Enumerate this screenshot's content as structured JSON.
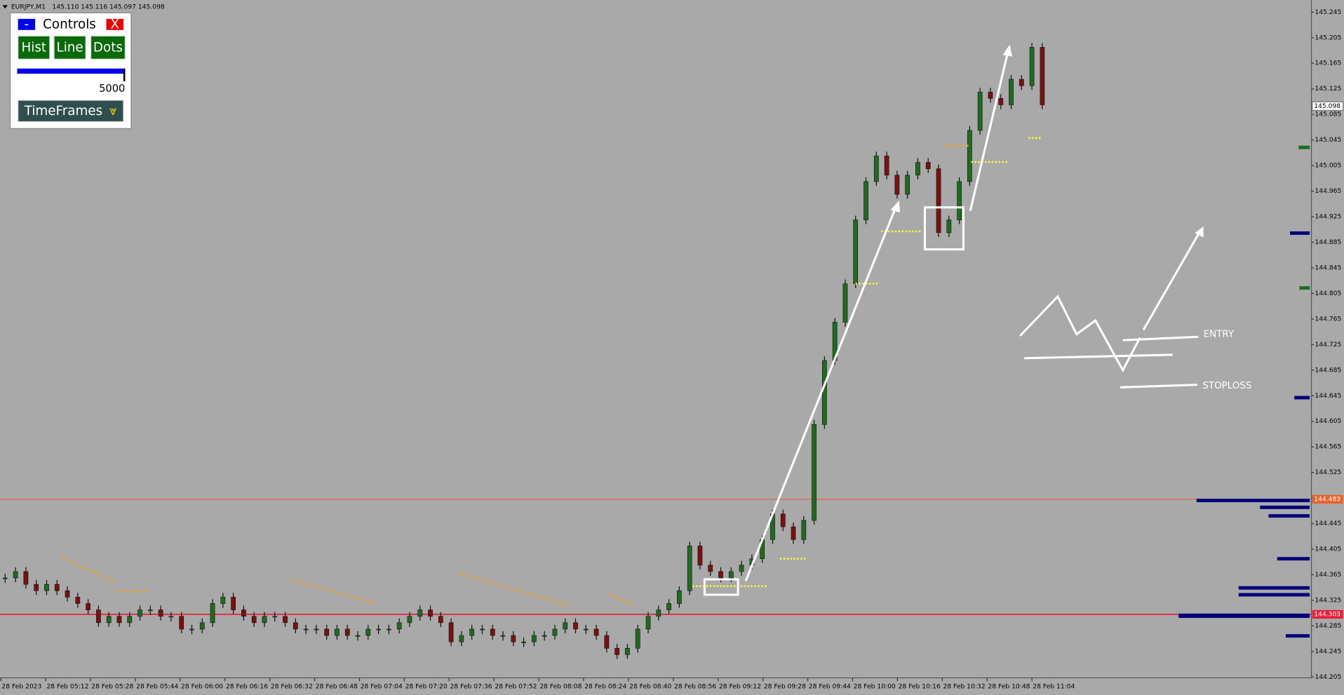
{
  "header": {
    "symbol": "EURJPY,M1",
    "ohlc": "145.110 145.116 145.097 145.098"
  },
  "controls": {
    "minimize": "-",
    "title": "Controls",
    "close": "X",
    "buttons": [
      "Hist",
      "Line",
      "Dots"
    ],
    "slider_value": "5000",
    "timeframes": "TimeFrames"
  },
  "chart_data": {
    "type": "candlestick",
    "values": [
      144.36,
      144.37,
      144.35,
      144.34,
      144.35,
      144.34,
      144.33,
      144.32,
      144.31,
      144.29,
      144.3,
      144.29,
      144.3,
      144.31,
      144.31,
      144.3,
      144.3,
      144.28,
      144.28,
      144.29,
      144.32,
      144.33,
      144.31,
      144.3,
      144.29,
      144.3,
      144.3,
      144.29,
      144.28,
      144.28,
      144.28,
      144.27,
      144.28,
      144.27,
      144.27,
      144.28,
      144.28,
      144.28,
      144.29,
      144.3,
      144.31,
      144.3,
      144.29,
      144.26,
      144.27,
      144.28,
      144.28,
      144.27,
      144.27,
      144.26,
      144.26,
      144.27,
      144.27,
      144.28,
      144.29,
      144.28,
      144.28,
      144.27,
      144.25,
      144.24,
      144.25,
      144.28,
      144.3,
      144.31,
      144.32,
      144.34,
      144.41,
      144.38,
      144.37,
      144.36,
      144.37,
      144.38,
      144.39,
      144.42,
      144.46,
      144.44,
      144.42,
      144.45,
      144.6,
      144.7,
      144.76,
      144.82,
      144.92,
      144.98,
      145.02,
      144.99,
      144.96,
      144.99,
      145.01,
      145.0,
      144.9,
      144.92,
      144.98,
      145.06,
      145.12,
      145.11,
      145.1,
      145.14,
      145.13,
      145.19,
      145.1
    ],
    "ylim": [
      144.205,
      145.264
    ],
    "yticks": [
      145.245,
      145.205,
      145.165,
      145.125,
      145.085,
      145.045,
      145.005,
      144.965,
      144.925,
      144.885,
      144.845,
      144.805,
      144.765,
      144.725,
      144.685,
      144.645,
      144.605,
      144.565,
      144.525,
      144.485,
      144.445,
      144.405,
      144.365,
      144.325,
      144.285,
      144.245,
      144.205
    ],
    "x_labels": [
      "28 Feb 2023",
      "28 Feb 05:12",
      "28 Feb 05:28",
      "28 Feb 05:44",
      "28 Feb 06:00",
      "28 Feb 06:16",
      "28 Feb 06:32",
      "28 Feb 06:48",
      "28 Feb 07:04",
      "28 Feb 07:20",
      "28 Feb 07:36",
      "28 Feb 07:52",
      "28 Feb 08:08",
      "28 Feb 08:24",
      "28 Feb 08:40",
      "28 Feb 08:56",
      "28 Feb 09:12",
      "28 Feb 09:28",
      "28 Feb 09:44",
      "28 Feb 10:00",
      "28 Feb 10:16",
      "28 Feb 10:32",
      "28 Feb 10:48",
      "28 Feb 11:04"
    ],
    "hlines": [
      {
        "value": 144.483,
        "color": "#e8622a"
      },
      {
        "value": 144.303,
        "color": "#e8203a"
      }
    ],
    "bid": 145.098,
    "up_color": "#1f6b1f",
    "down_color": "#7a1010",
    "annotations": [
      "ENTRY",
      "STOPLOSS"
    ]
  }
}
